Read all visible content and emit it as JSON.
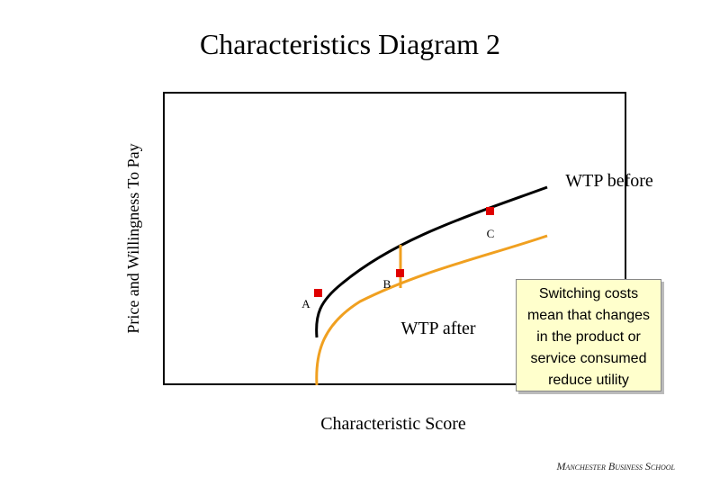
{
  "title": "Characteristics Diagram 2",
  "y_axis_label": "Price and Willingness To Pay",
  "x_axis_label": "Characteristic Score",
  "curve_labels": [
    "WTP before",
    "WTP after"
  ],
  "points": [
    "A",
    "B",
    "C"
  ],
  "callout": [
    "Switching costs",
    "mean that changes",
    "in the product or",
    "service consumed",
    "reduce utility"
  ],
  "footer": "Manchester Business School"
}
